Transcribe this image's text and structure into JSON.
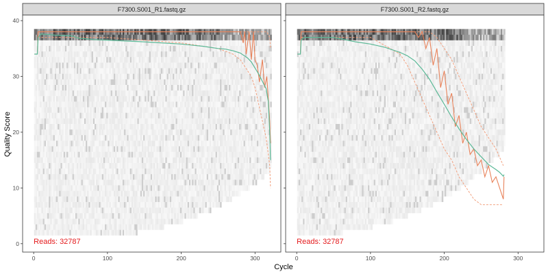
{
  "chart_data": {
    "type": "line",
    "xlabel": "Cycle",
    "ylabel": "Quality Score",
    "xlim": [
      -15,
      335
    ],
    "ylim": [
      -1.5,
      41
    ],
    "x_ticks": [
      0,
      100,
      200,
      300
    ],
    "y_ticks": [
      0,
      10,
      20,
      30,
      40
    ],
    "grid": false,
    "colors": {
      "mean_line": "#5ab896",
      "median_line": "#e8825a",
      "quartile_line": "#f2a07e",
      "reads_text": "#e41a1c",
      "strip_fill": "#d9d9d9",
      "panel_border": "#333333"
    },
    "panels": [
      {
        "strip_label": "F7300.S001_R1.fastq.gz",
        "reads_label": "Reads:  32787",
        "max_cycle": 321,
        "mean": {
          "x": [
            1,
            5,
            6,
            10,
            30,
            50,
            60,
            80,
            100,
            150,
            200,
            230,
            250,
            260,
            270,
            280,
            290,
            295,
            300,
            305,
            310,
            315,
            318,
            320,
            321
          ],
          "y": [
            34,
            34,
            37,
            37.6,
            37.4,
            37.3,
            36.9,
            36.6,
            36.5,
            36.2,
            35.8,
            35.4,
            35,
            34.9,
            34.6,
            34.2,
            33.3,
            32.6,
            31.5,
            30.4,
            29.1,
            27.8,
            25.5,
            20,
            15
          ]
        },
        "median": {
          "x": [
            1,
            5,
            6,
            10,
            280,
            284,
            286,
            288,
            292,
            295,
            298,
            300,
            303,
            306,
            310,
            313,
            316,
            318,
            320,
            321
          ],
          "y": [
            34,
            34,
            38,
            38,
            38,
            36,
            38,
            34,
            38,
            33,
            38,
            33,
            32,
            29,
            33,
            28,
            30,
            26,
            22,
            18
          ]
        },
        "quartile_upper": {
          "x": [
            6,
            280,
            300,
            310,
            316,
            320,
            321
          ],
          "y": [
            38,
            38,
            38,
            38,
            38,
            37,
            35
          ]
        },
        "quartile_lower": {
          "x": [
            6,
            100,
            200,
            250,
            270,
            280,
            290,
            295,
            300,
            305,
            310,
            315,
            320,
            321
          ],
          "y": [
            37,
            37,
            36,
            35,
            34,
            33,
            31,
            30,
            28,
            25,
            22,
            19,
            14,
            10
          ]
        }
      },
      {
        "strip_label": "F7300.S001_R2.fastq.gz",
        "reads_label": "Reads:  32787",
        "max_cycle": 281,
        "mean": {
          "x": [
            1,
            5,
            6,
            10,
            50,
            80,
            100,
            120,
            140,
            150,
            160,
            170,
            180,
            190,
            200,
            210,
            220,
            230,
            240,
            250,
            260,
            270,
            275,
            280,
            281
          ],
          "y": [
            34,
            34,
            36.5,
            37,
            37,
            36.2,
            35.8,
            35.2,
            34.3,
            33.7,
            32.8,
            31.3,
            29.5,
            27.2,
            25,
            22.7,
            20.6,
            18.7,
            17,
            15.6,
            14.2,
            13.3,
            12.8,
            12.1,
            12.4
          ]
        },
        "median": {
          "x": [
            1,
            5,
            6,
            10,
            150,
            160,
            165,
            170,
            175,
            180,
            185,
            190,
            195,
            200,
            205,
            210,
            215,
            220,
            225,
            230,
            235,
            240,
            245,
            250,
            255,
            260,
            265,
            270,
            275,
            280,
            281
          ],
          "y": [
            34,
            34,
            38,
            38,
            38,
            38,
            37,
            38,
            35,
            37,
            32,
            35,
            28,
            31,
            25,
            27,
            21,
            23,
            18,
            20,
            16,
            17,
            14,
            15,
            12,
            14,
            11,
            12,
            10,
            8,
            12
          ]
        },
        "quartile_upper": {
          "x": [
            6,
            150,
            170,
            180,
            190,
            200,
            210,
            220,
            230,
            240,
            250,
            260,
            270,
            280
          ],
          "y": [
            38,
            38,
            38,
            38,
            37,
            35,
            33,
            30,
            27,
            24,
            21,
            19,
            17,
            14
          ]
        },
        "quartile_lower": {
          "x": [
            6,
            100,
            140,
            150,
            160,
            170,
            180,
            190,
            200,
            210,
            220,
            230,
            240,
            250,
            260,
            270,
            280
          ],
          "y": [
            37,
            37,
            34,
            32,
            29,
            26,
            23,
            20,
            17,
            15,
            12,
            10,
            8,
            7,
            7,
            7,
            7
          ]
        }
      }
    ]
  }
}
